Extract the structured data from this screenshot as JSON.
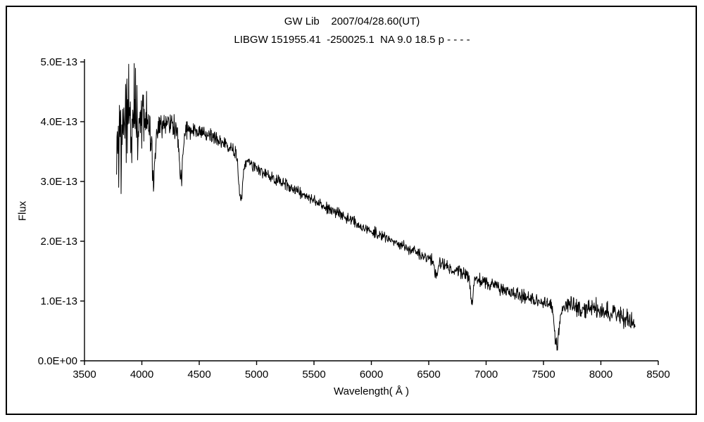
{
  "chart_data": {
    "type": "line",
    "title": "GW Lib    2007/04/28.60(UT)",
    "subtitle": "LIBGW 151955.41  -250025.1  NA 9.0 18.5 p - - - -",
    "xlabel": "Wavelength( Å )",
    "ylabel": "Flux",
    "xlim": [
      3500,
      8500
    ],
    "ylim_e13": [
      0,
      5
    ],
    "x_ticks": [
      3500,
      4000,
      4500,
      5000,
      5500,
      6000,
      6500,
      7000,
      7500,
      8000,
      8500
    ],
    "y_tick_values_e13": [
      0,
      1,
      2,
      3,
      4,
      5
    ],
    "y_tick_labels": [
      "0.0E+00",
      "1.0E-13",
      "2.0E-13",
      "3.0E-13",
      "4.0E-13",
      "5.0E-13"
    ],
    "grid": false,
    "legend": "none",
    "series": {
      "name": "GW Lib spectrum",
      "x_start": 3780,
      "x_end": 8300,
      "x_step": 3,
      "flux_unit_scale": "1E-13",
      "clip_max_e13": 5.0,
      "clip_min_e13": 0.05,
      "seed": 20070428,
      "continuum_anchors_e13": [
        [
          3780,
          3.6
        ],
        [
          3850,
          3.85
        ],
        [
          3950,
          4.15
        ],
        [
          4050,
          4.0
        ],
        [
          4150,
          3.95
        ],
        [
          4250,
          3.95
        ],
        [
          4300,
          3.9
        ],
        [
          4450,
          3.85
        ],
        [
          4550,
          3.8
        ],
        [
          4650,
          3.72
        ],
        [
          4750,
          3.6
        ],
        [
          4950,
          3.3
        ],
        [
          5050,
          3.15
        ],
        [
          5250,
          2.95
        ],
        [
          5500,
          2.68
        ],
        [
          5750,
          2.42
        ],
        [
          6000,
          2.18
        ],
        [
          6250,
          1.95
        ],
        [
          6500,
          1.72
        ],
        [
          6750,
          1.5
        ],
        [
          7000,
          1.3
        ],
        [
          7250,
          1.12
        ],
        [
          7500,
          0.98
        ],
        [
          7800,
          0.88
        ],
        [
          8000,
          0.85
        ],
        [
          8150,
          0.78
        ],
        [
          8300,
          0.62
        ]
      ],
      "absorption_features": [
        {
          "name": "H-delta 4102",
          "center": 4102,
          "depth_e13": 0.9,
          "sigma": 14
        },
        {
          "name": "H-gamma 4340",
          "center": 4340,
          "depth_e13": 0.85,
          "sigma": 15
        },
        {
          "name": "H-beta 4861",
          "center": 4861,
          "depth_e13": 0.75,
          "sigma": 17
        },
        {
          "name": "H-alpha 6563",
          "center": 6563,
          "depth_e13": 0.2,
          "sigma": 15
        },
        {
          "name": "telluric B-band 6870",
          "center": 6875,
          "depth_e13": 0.42,
          "sigma": 11
        },
        {
          "name": "telluric A-band 7620",
          "center": 7615,
          "depth_e13": 0.68,
          "sigma": 20
        }
      ],
      "noise_amplitude_anchors_e13": [
        [
          3780,
          0.55
        ],
        [
          3900,
          0.62
        ],
        [
          3980,
          0.45
        ],
        [
          4100,
          0.16
        ],
        [
          4300,
          0.14
        ],
        [
          4500,
          0.08
        ],
        [
          5000,
          0.07
        ],
        [
          6000,
          0.06
        ],
        [
          6500,
          0.07
        ],
        [
          7000,
          0.08
        ],
        [
          7500,
          0.08
        ],
        [
          7800,
          0.12
        ],
        [
          8300,
          0.14
        ]
      ]
    }
  }
}
